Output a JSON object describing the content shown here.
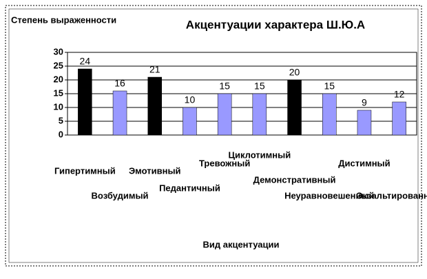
{
  "chart_data": {
    "type": "bar",
    "title": "Акцентуации характера Ш.Ю.А",
    "y_label": "Степень выраженности",
    "x_label": "Вид акцентуации",
    "categories": [
      "Гипертимный",
      "Возбудимый",
      "Эмотивный",
      "Педантичный",
      "Тревожный",
      "Циклотимный",
      "Демонстративный",
      "Неуравновешенный",
      "Дистимный",
      "Экзальтированный"
    ],
    "values": [
      24,
      16,
      21,
      10,
      15,
      15,
      20,
      15,
      9,
      12
    ],
    "colors": [
      "#000000",
      "#9999ff",
      "#000000",
      "#9999ff",
      "#9999ff",
      "#9999ff",
      "#000000",
      "#9999ff",
      "#9999ff",
      "#9999ff"
    ],
    "ylim": [
      0,
      30
    ],
    "yticks": [
      0,
      5,
      10,
      15,
      20,
      25,
      30
    ],
    "grid": true
  }
}
